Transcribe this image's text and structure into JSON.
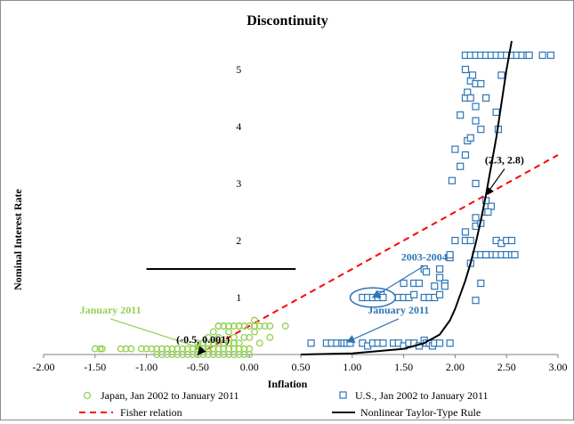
{
  "chart_data": {
    "type": "scatter",
    "title": "Discontinuity",
    "xlabel": "Inflation",
    "ylabel": "Nominal Interest Rate",
    "xlim": [
      -2.0,
      3.0
    ],
    "ylim": [
      0,
      5.5
    ],
    "x_ticks": [
      "-2.00",
      "-1.50",
      "-1.00",
      "-0.50",
      "0.00",
      "0.50",
      "1.00",
      "1.50",
      "2.00",
      "2.50",
      "3.00"
    ],
    "y_ticks": [
      "1",
      "2",
      "3",
      "4",
      "5"
    ],
    "grid": false,
    "legend_position": "bottom",
    "colors": {
      "japan": "#92d050",
      "us": "#2e75b6",
      "fisher": "#ff0000",
      "taylor": "#000000",
      "annotation_blue": "#2e75b6",
      "annotation_green": "#92d050",
      "annotation_black": "#000000"
    },
    "series": [
      {
        "name": "Japan, Jan 2002 to January 2011",
        "kind": "scatter",
        "marker": "circle",
        "x": [
          -1.5,
          -1.45,
          -1.43,
          -1.25,
          -1.2,
          -1.15,
          -1.05,
          -1.0,
          -0.95,
          -0.9,
          -0.85,
          -0.8,
          -0.75,
          -0.7,
          -0.65,
          -0.6,
          -0.55,
          -0.5,
          -0.45,
          -0.4,
          -0.35,
          -0.3,
          -0.25,
          -0.2,
          -0.15,
          -0.1,
          -0.05,
          0.0,
          -0.9,
          -0.85,
          -0.8,
          -0.75,
          -0.7,
          -0.65,
          -0.6,
          -0.55,
          -0.5,
          -0.45,
          -0.4,
          -0.35,
          -0.3,
          -0.25,
          -0.2,
          -0.15,
          -0.1,
          -0.05,
          0.0,
          -0.5,
          -0.45,
          -0.4,
          -0.35,
          -0.3,
          -0.25,
          -0.2,
          -0.15,
          -0.1,
          -0.4,
          -0.3,
          -0.35,
          -0.2,
          -0.25,
          -0.3,
          -0.2,
          -0.1,
          -0.15,
          -0.3,
          -0.25,
          -0.2,
          -0.15,
          -0.1,
          -0.05,
          0.0,
          0.05,
          0.1,
          0.15,
          0.2,
          -0.05,
          0.0,
          0.05,
          0.35,
          0.1,
          0.2,
          0.05,
          -0.4,
          -0.5
        ],
        "y": [
          0.1,
          0.1,
          0.1,
          0.1,
          0.1,
          0.1,
          0.1,
          0.1,
          0.1,
          0.1,
          0.1,
          0.1,
          0.1,
          0.1,
          0.1,
          0.1,
          0.1,
          0.1,
          0.1,
          0.1,
          0.1,
          0.1,
          0.1,
          0.1,
          0.1,
          0.1,
          0.1,
          0.1,
          0.0,
          0.0,
          0.0,
          0.0,
          0.0,
          0.0,
          0.0,
          0.0,
          0.0,
          0.0,
          0.0,
          0.0,
          0.0,
          0.0,
          0.0,
          0.0,
          0.0,
          0.0,
          0.0,
          0.2,
          0.2,
          0.2,
          0.2,
          0.2,
          0.2,
          0.2,
          0.2,
          0.2,
          0.3,
          0.3,
          0.4,
          0.4,
          0.5,
          0.5,
          0.5,
          0.5,
          0.3,
          0.5,
          0.5,
          0.5,
          0.5,
          0.5,
          0.5,
          0.5,
          0.5,
          0.5,
          0.5,
          0.5,
          0.3,
          0.3,
          0.4,
          0.5,
          0.2,
          0.3,
          0.6,
          0.05,
          0.0
        ]
      },
      {
        "name": "U.S., Jan 2002 to January 2011",
        "kind": "scatter",
        "marker": "square",
        "x": [
          0.6,
          0.75,
          0.8,
          0.85,
          0.9,
          0.92,
          0.95,
          0.98,
          1.1,
          1.15,
          1.2,
          1.25,
          1.3,
          1.4,
          1.45,
          1.5,
          1.55,
          1.6,
          1.65,
          1.7,
          1.72,
          1.75,
          1.78,
          1.8,
          1.85,
          1.95,
          1.1,
          1.15,
          1.2,
          1.25,
          1.28,
          1.3,
          1.45,
          1.5,
          1.55,
          1.6,
          1.7,
          1.75,
          1.8,
          1.85,
          1.9,
          1.5,
          1.6,
          1.65,
          1.7,
          1.8,
          1.85,
          1.9,
          1.95,
          1.72,
          1.85,
          1.95,
          2.0,
          2.1,
          2.15,
          2.2,
          2.25,
          2.3,
          2.35,
          2.4,
          2.45,
          2.5,
          2.55,
          2.58,
          2.1,
          2.2,
          2.25,
          2.3,
          2.35,
          2.4,
          2.45,
          2.5,
          2.55,
          2.2,
          2.25,
          2.3,
          2.15,
          2.2,
          1.97,
          2.05,
          2.1,
          2.12,
          2.15,
          2.2,
          2.3,
          2.32,
          2.0,
          2.05,
          2.1,
          2.12,
          2.15,
          2.17,
          2.2,
          2.25,
          2.1,
          2.15,
          2.2,
          2.25,
          2.3,
          2.2,
          2.4,
          2.42,
          2.45,
          2.1,
          2.15,
          2.2,
          2.25,
          2.3,
          2.35,
          2.4,
          2.45,
          2.5,
          2.55,
          2.6,
          2.65,
          2.7,
          2.72,
          2.85,
          2.93
        ],
        "y": [
          0.2,
          0.2,
          0.2,
          0.2,
          0.2,
          0.2,
          0.2,
          0.2,
          0.2,
          0.15,
          0.2,
          0.2,
          0.2,
          0.2,
          0.2,
          0.15,
          0.2,
          0.2,
          0.15,
          0.25,
          0.2,
          0.2,
          0.15,
          0.2,
          0.2,
          0.2,
          1.0,
          1.0,
          1.0,
          1.0,
          1.05,
          1.0,
          1.0,
          1.0,
          1.0,
          1.05,
          1.0,
          1.0,
          1.0,
          1.05,
          1.25,
          1.25,
          1.25,
          1.25,
          1.5,
          1.2,
          1.35,
          1.2,
          1.7,
          1.45,
          1.5,
          1.75,
          2.0,
          2.0,
          2.0,
          1.75,
          1.75,
          1.75,
          1.75,
          1.75,
          1.75,
          1.75,
          1.75,
          1.75,
          2.15,
          2.25,
          2.3,
          2.5,
          2.6,
          2.0,
          1.95,
          2.0,
          2.0,
          0.95,
          1.25,
          1.75,
          1.6,
          2.4,
          3.05,
          3.3,
          3.5,
          3.75,
          3.8,
          3.0,
          2.7,
          2.5,
          3.6,
          4.2,
          4.5,
          4.6,
          4.8,
          4.9,
          4.35,
          3.95,
          5.0,
          4.5,
          4.75,
          4.75,
          4.5,
          4.1,
          4.25,
          3.95,
          4.9,
          5.25,
          5.25,
          5.25,
          5.25,
          5.25,
          5.25,
          5.25,
          5.25,
          5.25,
          5.25,
          5.25,
          5.25,
          5.25,
          5.25,
          5.25,
          5.25
        ]
      },
      {
        "name": "Fisher relation",
        "kind": "line",
        "style": "dashed",
        "x": [
          -0.5,
          3.0
        ],
        "y": [
          0.001,
          3.5
        ]
      },
      {
        "name": "Nonlinear Taylor-Type Rule",
        "kind": "line",
        "style": "solid",
        "x": [
          0.5,
          1.0,
          1.5,
          1.7,
          1.85,
          1.95,
          2.0,
          2.05,
          2.1,
          2.15,
          2.2,
          2.25,
          2.3,
          2.35,
          2.4,
          2.45,
          2.5,
          2.55
        ],
        "y": [
          0.0,
          0.02,
          0.1,
          0.2,
          0.35,
          0.6,
          0.8,
          1.05,
          1.3,
          1.6,
          1.95,
          2.35,
          2.8,
          3.3,
          3.8,
          4.4,
          5.0,
          5.5
        ]
      }
    ],
    "flat_segment": {
      "x": [
        -1.0,
        0.45
      ],
      "y": [
        1.5,
        1.5
      ]
    },
    "annotations": [
      {
        "text": "(2.3, 2.8)",
        "color": "black",
        "point": [
          2.3,
          2.8
        ],
        "anchor": [
          2.48,
          3.35
        ]
      },
      {
        "text": "2003-2004",
        "color": "blue",
        "point": [
          1.2,
          1.0
        ],
        "anchor": [
          1.7,
          1.65
        ]
      },
      {
        "text": "January 2011",
        "color": "blue",
        "point": [
          0.95,
          0.22
        ],
        "anchor": [
          1.45,
          0.72
        ]
      },
      {
        "text": "January 2011",
        "color": "green",
        "point": [
          -0.45,
          0.1
        ],
        "anchor": [
          -1.35,
          0.72
        ]
      },
      {
        "text": "(-0.5, 0.001)",
        "color": "black",
        "point": [
          -0.5,
          0.001
        ],
        "anchor": [
          -0.45,
          0.2
        ]
      }
    ],
    "ellipse": {
      "cx": 1.2,
      "cy": 1.0,
      "rx": 0.22,
      "ry": 0.17
    }
  }
}
